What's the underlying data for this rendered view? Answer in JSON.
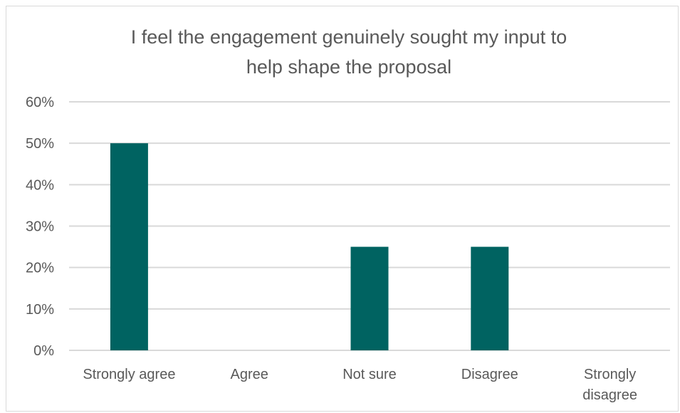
{
  "chart_data": {
    "type": "bar",
    "title": "I feel the engagement genuinely sought my input to help shape the proposal",
    "title_lines": [
      "I feel the engagement genuinely sought my input to",
      "help shape the proposal"
    ],
    "xlabel": "",
    "ylabel": "",
    "categories": [
      "Strongly agree",
      "Agree",
      "Not sure",
      "Disagree",
      "Strongly disagree"
    ],
    "category_lines": [
      [
        "Strongly agree"
      ],
      [
        "Agree"
      ],
      [
        "Not sure"
      ],
      [
        "Disagree"
      ],
      [
        "Strongly",
        "disagree"
      ]
    ],
    "values": [
      0.5,
      0,
      0.25,
      0.25,
      0
    ],
    "ylim": [
      0,
      0.6
    ],
    "yticks": [
      0,
      0.1,
      0.2,
      0.3,
      0.4,
      0.5,
      0.6
    ],
    "ytick_labels": [
      "0%",
      "10%",
      "20%",
      "30%",
      "40%",
      "50%",
      "60%"
    ],
    "grid": true,
    "legend": "none",
    "bar_color": "#006361",
    "grid_color": "#d9d9d9",
    "text_color": "#595959"
  }
}
